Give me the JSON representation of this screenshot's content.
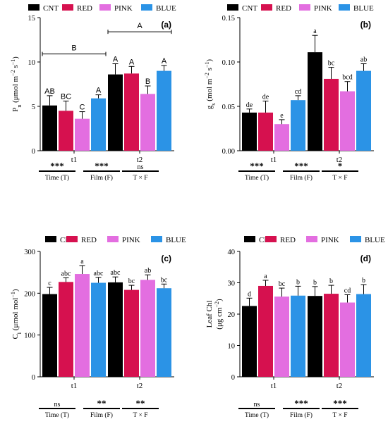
{
  "colors": {
    "CNT": "#000000",
    "RED": "#d6114f",
    "PINK": "#e36ee0",
    "BLUE": "#2b93e6"
  },
  "legend": [
    "CNT",
    "RED",
    "PINK",
    "BLUE"
  ],
  "chart_data": [
    {
      "type": "bar",
      "panel": "(a)",
      "ylabel": "Pn (μmol m−2 s−1)",
      "ylim": [
        0,
        15
      ],
      "yticks": [
        "0",
        "5",
        "10",
        "15"
      ],
      "categories": [
        "t1",
        "t2"
      ],
      "series": [
        {
          "name": "CNT",
          "values": [
            5.1,
            8.6
          ],
          "errors": [
            1.1,
            1.2
          ],
          "letters": [
            "AB",
            "A"
          ]
        },
        {
          "name": "RED",
          "values": [
            4.5,
            8.7
          ],
          "errors": [
            1.1,
            0.8
          ],
          "letters": [
            "BC",
            "A"
          ]
        },
        {
          "name": "PINK",
          "values": [
            3.6,
            6.4
          ],
          "errors": [
            0.8,
            0.9
          ],
          "letters": [
            "C",
            "B"
          ]
        },
        {
          "name": "BLUE",
          "values": [
            5.9,
            9.0
          ],
          "errors": [
            0.4,
            0.6
          ],
          "letters": [
            "A",
            "A"
          ]
        }
      ],
      "group_letters": [
        {
          "text": "B",
          "level": 10.9,
          "covers": "t1"
        },
        {
          "text": "A",
          "level": 13.4,
          "covers": "t2"
        }
      ],
      "significance": [
        {
          "stars": "***",
          "label": "Time (T)"
        },
        {
          "stars": "***",
          "label": "Film (F)"
        },
        {
          "stars": "ns",
          "label": "T × F"
        }
      ]
    },
    {
      "type": "bar",
      "panel": "(b)",
      "ylabel": "gs (mol m−2 s−1)",
      "ylim": [
        0,
        0.15
      ],
      "yticks": [
        "0.00",
        "0.05",
        "0.10",
        "0.15"
      ],
      "categories": [
        "t1",
        "t2"
      ],
      "series": [
        {
          "name": "CNT",
          "values": [
            0.043,
            0.111
          ],
          "errors": [
            0.004,
            0.019
          ],
          "letters": [
            "de",
            "a"
          ]
        },
        {
          "name": "RED",
          "values": [
            0.043,
            0.081
          ],
          "errors": [
            0.013,
            0.013
          ],
          "letters": [
            "de",
            "bc"
          ]
        },
        {
          "name": "PINK",
          "values": [
            0.03,
            0.067
          ],
          "errors": [
            0.005,
            0.011
          ],
          "letters": [
            "e",
            "bcd"
          ]
        },
        {
          "name": "BLUE",
          "values": [
            0.057,
            0.09
          ],
          "errors": [
            0.005,
            0.008
          ],
          "letters": [
            "cd",
            "ab"
          ]
        }
      ],
      "significance": [
        {
          "stars": "***",
          "label": "Time (T)"
        },
        {
          "stars": "***",
          "label": "Film (F)"
        },
        {
          "stars": "*",
          "label": "T × F"
        }
      ]
    },
    {
      "type": "bar",
      "panel": "(c)",
      "ylabel": "Ci (μmol mol−1)",
      "ylim": [
        0,
        300
      ],
      "yticks": [
        "0",
        "100",
        "200",
        "300"
      ],
      "categories": [
        "t1",
        "t2"
      ],
      "series": [
        {
          "name": "CNT",
          "values": [
            198,
            226
          ],
          "errors": [
            16,
            13
          ],
          "letters": [
            "c",
            "abc"
          ]
        },
        {
          "name": "RED",
          "values": [
            227,
            208
          ],
          "errors": [
            10,
            11
          ],
          "letters": [
            "abc",
            "bc"
          ]
        },
        {
          "name": "PINK",
          "values": [
            246,
            232
          ],
          "errors": [
            20,
            12
          ],
          "letters": [
            "a",
            "ab"
          ]
        },
        {
          "name": "BLUE",
          "values": [
            225,
            212
          ],
          "errors": [
            13,
            10
          ],
          "letters": [
            "abc",
            "bc"
          ]
        }
      ],
      "significance": [
        {
          "stars": "ns",
          "label": "Time (T)"
        },
        {
          "stars": "**",
          "label": "Film (F)"
        },
        {
          "stars": "**",
          "label": "T × F"
        }
      ]
    },
    {
      "type": "bar",
      "panel": "(d)",
      "ylabel": "Leaf Chl (μg cm−2)",
      "ylim": [
        0,
        40
      ],
      "yticks": [
        "0",
        "10",
        "20",
        "30",
        "40"
      ],
      "categories": [
        "t1",
        "t2"
      ],
      "series": [
        {
          "name": "CNT",
          "values": [
            22.6,
            25.8
          ],
          "errors": [
            2.5,
            3.0
          ],
          "letters": [
            "d",
            "b"
          ]
        },
        {
          "name": "RED",
          "values": [
            29.0,
            26.5
          ],
          "errors": [
            1.8,
            2.7
          ],
          "letters": [
            "a",
            "b"
          ]
        },
        {
          "name": "PINK",
          "values": [
            25.6,
            23.7
          ],
          "errors": [
            2.7,
            2.5
          ],
          "letters": [
            "bc",
            "cd"
          ]
        },
        {
          "name": "BLUE",
          "values": [
            25.9,
            26.4
          ],
          "errors": [
            3.0,
            3.0
          ],
          "letters": [
            "b",
            "b"
          ]
        }
      ],
      "significance": [
        {
          "stars": "ns",
          "label": "Time (T)"
        },
        {
          "stars": "***",
          "label": "Film (F)"
        },
        {
          "stars": "***",
          "label": "T × F"
        }
      ]
    }
  ]
}
